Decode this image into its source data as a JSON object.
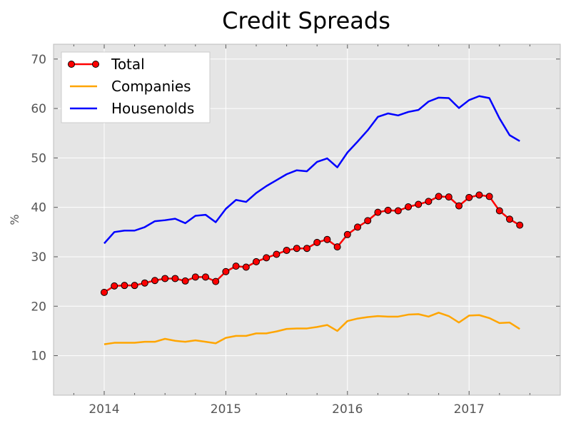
{
  "chart_data": {
    "type": "line",
    "title": "Credit Spreads",
    "xlabel": "",
    "ylabel": "%",
    "xlim": [
      "2013-08",
      "2017-10"
    ],
    "ylim": [
      2,
      73
    ],
    "x_ticks": [
      "2014",
      "2015",
      "2016",
      "2017"
    ],
    "y_ticks": [
      "10",
      "20",
      "30",
      "40",
      "50",
      "60",
      "70"
    ],
    "grid": true,
    "legend_position": "top-left",
    "x": [
      "2014-01",
      "2014-02",
      "2014-03",
      "2014-04",
      "2014-05",
      "2014-06",
      "2014-07",
      "2014-08",
      "2014-09",
      "2014-10",
      "2014-11",
      "2014-12",
      "2015-01",
      "2015-02",
      "2015-03",
      "2015-04",
      "2015-05",
      "2015-06",
      "2015-07",
      "2015-08",
      "2015-09",
      "2015-10",
      "2015-11",
      "2015-12",
      "2016-01",
      "2016-02",
      "2016-03",
      "2016-04",
      "2016-05",
      "2016-06",
      "2016-07",
      "2016-08",
      "2016-09",
      "2016-10",
      "2016-11",
      "2016-12",
      "2017-01",
      "2017-02",
      "2017-03",
      "2017-04",
      "2017-05",
      "2017-06"
    ],
    "series": [
      {
        "name": "Total",
        "color": "#ff0000",
        "marker": "circle",
        "values": [
          22.8,
          24.1,
          24.2,
          24.2,
          24.7,
          25.2,
          25.6,
          25.6,
          25.1,
          25.9,
          25.9,
          25.0,
          27.0,
          28.1,
          27.9,
          29.0,
          29.8,
          30.5,
          31.3,
          31.7,
          31.7,
          32.9,
          33.5,
          32.0,
          34.5,
          36.0,
          37.3,
          39.0,
          39.4,
          39.3,
          40.1,
          40.6,
          41.2,
          42.2,
          42.1,
          40.3,
          42.0,
          42.5,
          42.2,
          39.3,
          37.6,
          36.4
        ]
      },
      {
        "name": "Companies",
        "color": "#ffa500",
        "values": [
          12.3,
          12.6,
          12.6,
          12.6,
          12.8,
          12.8,
          13.4,
          13.0,
          12.8,
          13.1,
          12.8,
          12.5,
          13.6,
          14.0,
          14.0,
          14.5,
          14.5,
          14.9,
          15.4,
          15.5,
          15.5,
          15.8,
          16.2,
          15.0,
          17.0,
          17.5,
          17.8,
          18.0,
          17.9,
          17.9,
          18.3,
          18.4,
          17.9,
          18.7,
          18.0,
          16.7,
          18.1,
          18.2,
          17.6,
          16.6,
          16.7,
          15.4
        ]
      },
      {
        "name": "Housenolds",
        "color": "#0000ff",
        "values": [
          32.7,
          35.0,
          35.3,
          35.3,
          36.0,
          37.2,
          37.4,
          37.7,
          36.8,
          38.3,
          38.5,
          37.0,
          39.7,
          41.5,
          41.1,
          42.9,
          44.3,
          45.5,
          46.7,
          47.5,
          47.3,
          49.2,
          49.9,
          48.1,
          51.1,
          53.3,
          55.6,
          58.3,
          59.0,
          58.6,
          59.3,
          59.7,
          61.4,
          62.2,
          62.1,
          60.1,
          61.7,
          62.5,
          62.1,
          58.0,
          54.6,
          53.4
        ]
      }
    ]
  }
}
